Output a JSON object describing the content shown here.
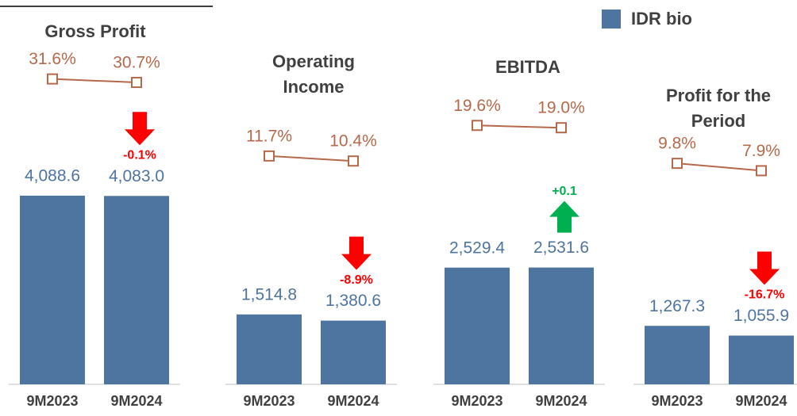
{
  "legend": {
    "name": "IDR bio",
    "color": "#4e74a0"
  },
  "chart_data": [
    {
      "type": "bar",
      "title": "Gross Profit",
      "categories": [
        "9M2023",
        "9M2024"
      ],
      "values": [
        4088.6,
        4083.0
      ],
      "value_labels": [
        "4,088.6",
        "4,083.0"
      ],
      "color": "#4e74a0",
      "ylim": [
        0,
        4500
      ],
      "line": {
        "values": [
          31.6,
          30.7
        ],
        "value_labels": [
          "31.6%",
          "30.7%"
        ],
        "color": "#b5694a",
        "axis": "y2"
      },
      "y2lim": [
        0,
        52
      ],
      "change": {
        "value": -0.1,
        "label": "-0.1%",
        "color": "#ff0000"
      }
    },
    {
      "type": "bar",
      "title": "Operating Income",
      "categories": [
        "9M2023",
        "9M2024"
      ],
      "values": [
        1514.8,
        1380.6
      ],
      "value_labels": [
        "1,514.8",
        "1,380.6"
      ],
      "color": "#4e74a0",
      "ylim": [
        0,
        4500
      ],
      "line": {
        "values": [
          11.7,
          10.4
        ],
        "value_labels": [
          "11.7%",
          "10.4%"
        ],
        "color": "#b5694a",
        "axis": "y2"
      },
      "y2lim": [
        0,
        52
      ],
      "change": {
        "value": -8.9,
        "label": "-8.9%",
        "color": "#ff0000"
      }
    },
    {
      "type": "bar",
      "title": "EBITDA",
      "categories": [
        "9M2023",
        "9M2024"
      ],
      "values": [
        2529.4,
        2531.6
      ],
      "value_labels": [
        "2,529.4",
        "2,531.6"
      ],
      "color": "#4e74a0",
      "ylim": [
        0,
        4500
      ],
      "line": {
        "values": [
          19.6,
          19.0
        ],
        "value_labels": [
          "19.6%",
          "19.0%"
        ],
        "color": "#b5694a",
        "axis": "y2"
      },
      "y2lim": [
        0,
        52
      ],
      "change": {
        "value": 0.1,
        "label": "+0.1",
        "color": "#00b050"
      }
    },
    {
      "type": "bar",
      "title": "Profit for the Period",
      "categories": [
        "9M2023",
        "9M2024"
      ],
      "values": [
        1267.3,
        1055.9
      ],
      "value_labels": [
        "1,267.3",
        "1,055.9"
      ],
      "color": "#4e74a0",
      "ylim": [
        0,
        4500
      ],
      "line": {
        "values": [
          9.8,
          7.9
        ],
        "value_labels": [
          "9.8%",
          "7.9%"
        ],
        "color": "#b5694a",
        "axis": "y2"
      },
      "y2lim": [
        0,
        52
      ],
      "change": {
        "value": -16.7,
        "label": "-16.7%",
        "color": "#ff0000"
      }
    }
  ]
}
